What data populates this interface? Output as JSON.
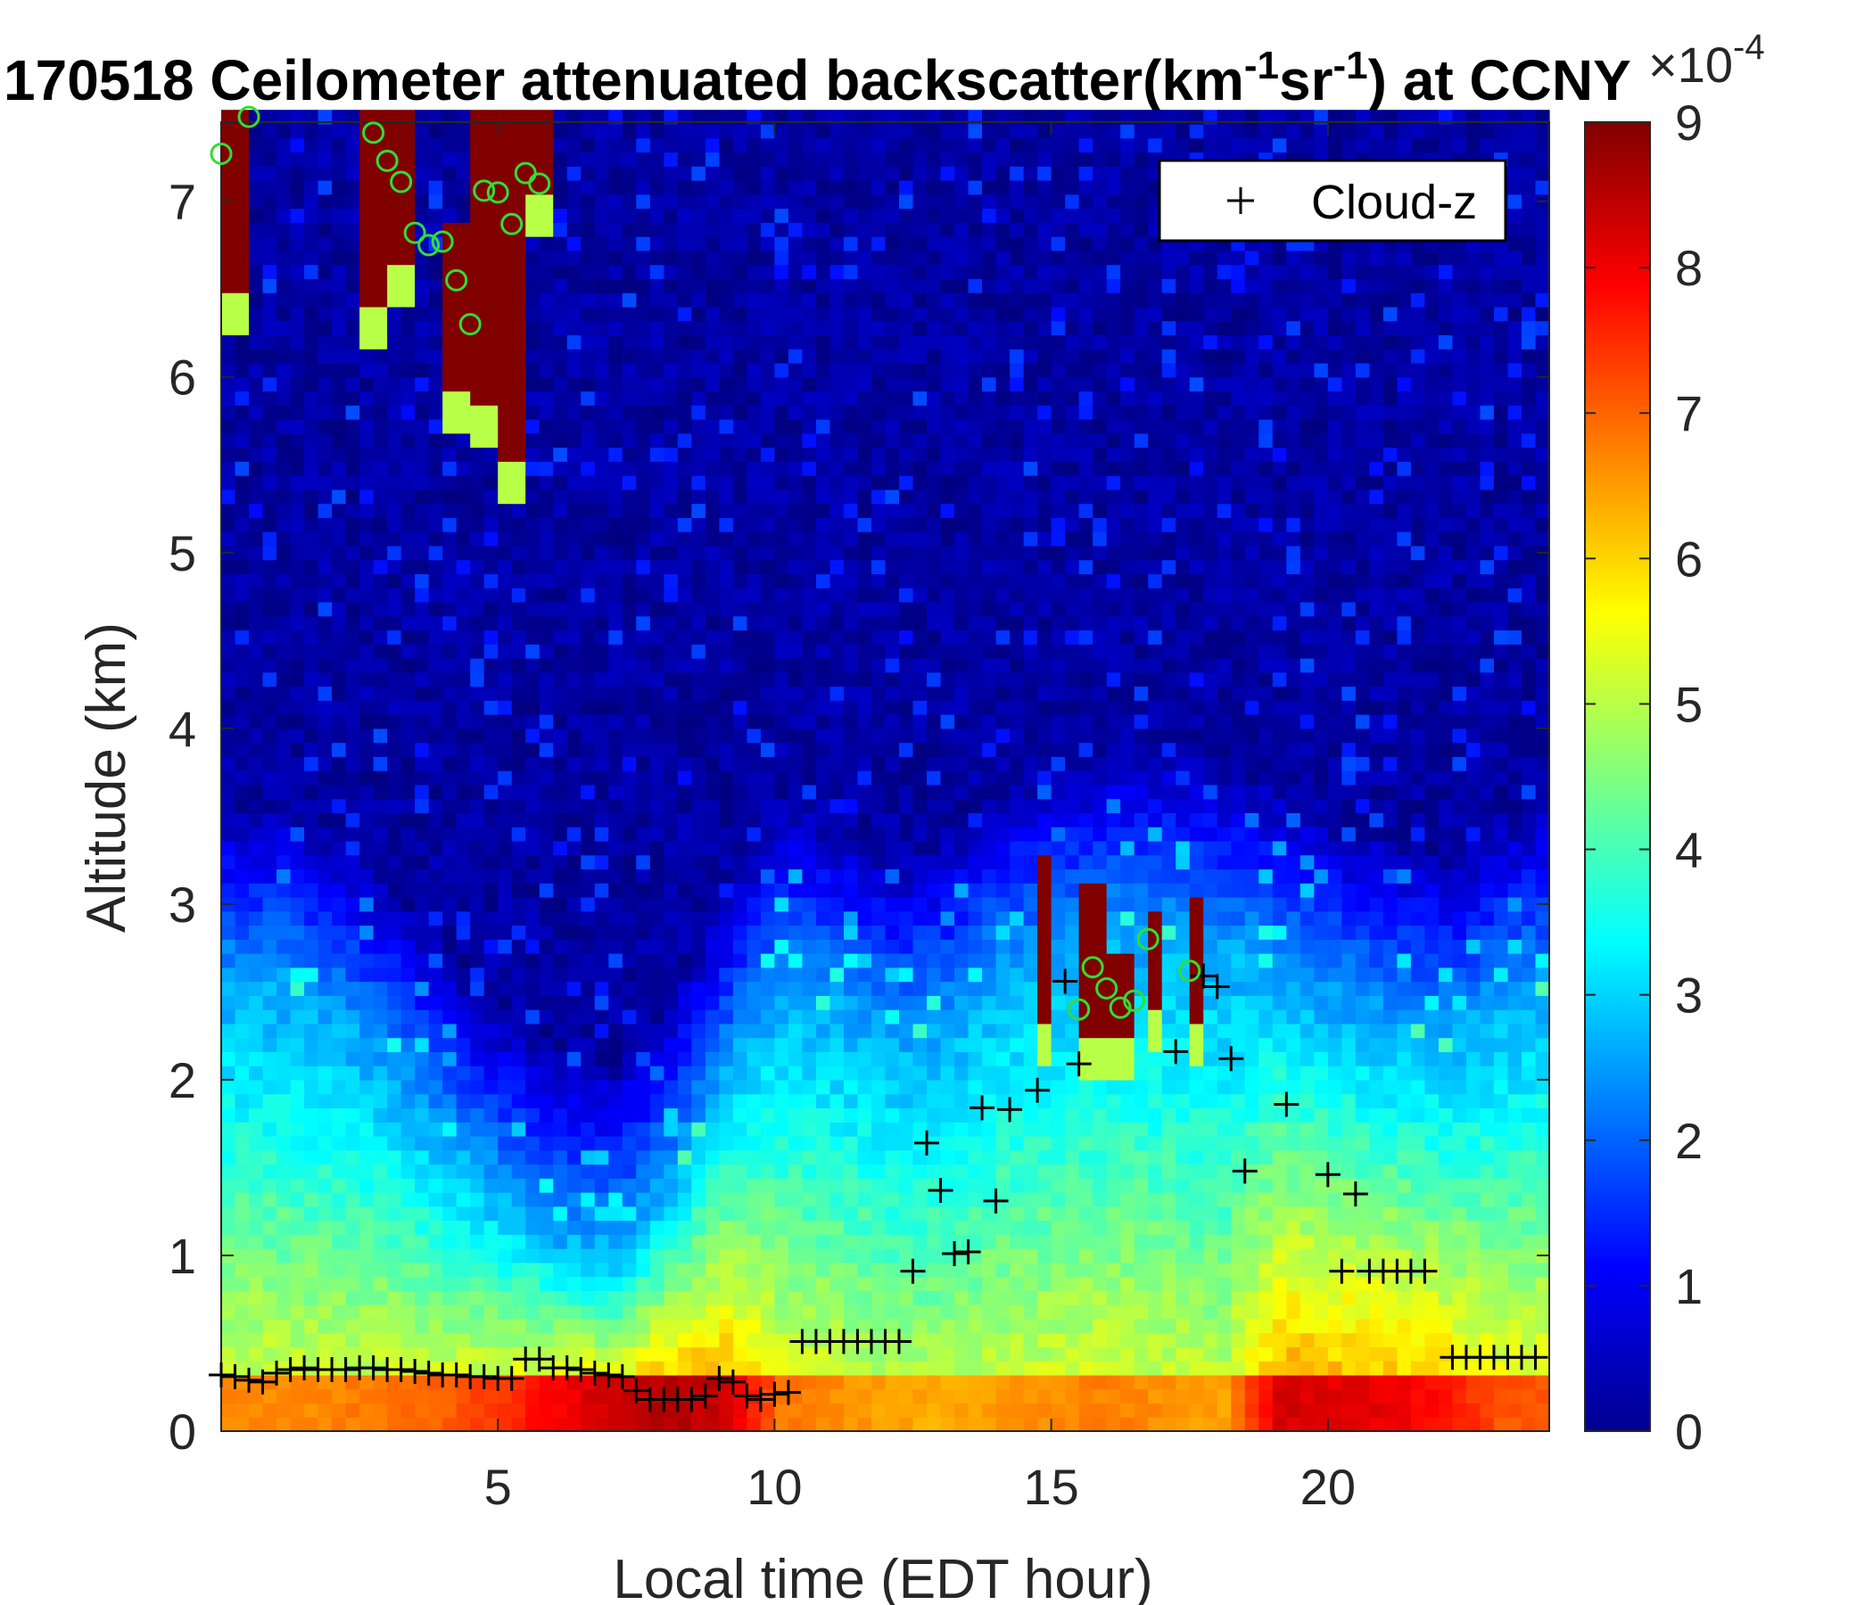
{
  "chart_data": {
    "type": "heatmap",
    "title": {
      "prefix": "170518 Ceilometer attenuated backscatter(km",
      "sup1": "-1",
      "mid": "sr",
      "sup2": "-1",
      "suffix": ") at CCNY"
    },
    "xlabel": "Local time (EDT hour)",
    "ylabel": "Altitude (km)",
    "xlim": [
      0,
      24
    ],
    "ylim": [
      0,
      7.45
    ],
    "xticks": [
      5,
      10,
      15,
      20
    ],
    "yticks": [
      0,
      1,
      2,
      3,
      4,
      5,
      6,
      7
    ],
    "colorbar": {
      "colormap": "jet",
      "clim": [
        0,
        9
      ],
      "ticks": [
        0,
        1,
        2,
        3,
        4,
        5,
        6,
        7,
        8,
        9
      ],
      "exponent_label": {
        "base": "×10",
        "exp": "-4"
      }
    },
    "legend": {
      "entries": [
        "Cloud-z"
      ],
      "marker": "+",
      "location": "top-right"
    },
    "series": [
      {
        "name": "Cloud-z",
        "marker": "+",
        "color": "#000000",
        "points": [
          [
            0,
            0.32
          ],
          [
            0.25,
            0.31
          ],
          [
            0.5,
            0.29
          ],
          [
            0.75,
            0.28
          ],
          [
            1,
            0.33
          ],
          [
            1.25,
            0.35
          ],
          [
            1.5,
            0.36
          ],
          [
            1.75,
            0.35
          ],
          [
            2,
            0.35
          ],
          [
            2.25,
            0.35
          ],
          [
            2.5,
            0.36
          ],
          [
            2.75,
            0.36
          ],
          [
            3,
            0.35
          ],
          [
            3.25,
            0.35
          ],
          [
            3.5,
            0.34
          ],
          [
            3.75,
            0.33
          ],
          [
            4,
            0.32
          ],
          [
            4.25,
            0.32
          ],
          [
            4.5,
            0.31
          ],
          [
            4.75,
            0.31
          ],
          [
            5,
            0.3
          ],
          [
            5.25,
            0.3
          ],
          [
            5.5,
            0.41
          ],
          [
            5.75,
            0.41
          ],
          [
            6,
            0.36
          ],
          [
            6.25,
            0.36
          ],
          [
            6.5,
            0.35
          ],
          [
            6.75,
            0.33
          ],
          [
            7,
            0.32
          ],
          [
            7.25,
            0.31
          ],
          [
            7.5,
            0.23
          ],
          [
            7.75,
            0.18
          ],
          [
            8,
            0.18
          ],
          [
            8.25,
            0.18
          ],
          [
            8.5,
            0.18
          ],
          [
            8.75,
            0.2
          ],
          [
            9,
            0.3
          ],
          [
            9.25,
            0.28
          ],
          [
            9.5,
            0.2
          ],
          [
            9.75,
            0.18
          ],
          [
            10,
            0.21
          ],
          [
            10.25,
            0.22
          ],
          [
            10.5,
            0.51
          ],
          [
            10.75,
            0.51
          ],
          [
            11,
            0.51
          ],
          [
            11.25,
            0.51
          ],
          [
            11.5,
            0.51
          ],
          [
            11.75,
            0.51
          ],
          [
            12,
            0.51
          ],
          [
            12.25,
            0.51
          ],
          [
            12.5,
            0.91
          ],
          [
            12.75,
            1.64
          ],
          [
            13,
            1.37
          ],
          [
            13.25,
            1.01
          ],
          [
            13.5,
            1.02
          ],
          [
            13.75,
            1.84
          ],
          [
            14,
            1.31
          ],
          [
            14.25,
            1.83
          ],
          [
            14.75,
            1.94
          ],
          [
            15.25,
            2.56
          ],
          [
            15.5,
            2.09
          ],
          [
            17.25,
            2.16
          ],
          [
            17.75,
            2.59
          ],
          [
            18.0,
            2.53
          ],
          [
            18.25,
            2.12
          ],
          [
            18.5,
            1.48
          ],
          [
            19.25,
            1.86
          ],
          [
            20,
            1.46
          ],
          [
            20.5,
            1.35
          ],
          [
            20.25,
            0.91
          ],
          [
            20.75,
            0.91
          ],
          [
            21,
            0.91
          ],
          [
            21.25,
            0.91
          ],
          [
            21.5,
            0.91
          ],
          [
            21.75,
            0.91
          ],
          [
            22.25,
            0.42
          ],
          [
            22.5,
            0.42
          ],
          [
            22.75,
            0.42
          ],
          [
            23,
            0.42
          ],
          [
            23.25,
            0.42
          ],
          [
            23.5,
            0.42
          ],
          [
            23.75,
            0.42
          ]
        ]
      },
      {
        "name": "",
        "marker": "o",
        "color": "#33dd33",
        "points": [
          [
            0.0,
            7.27
          ],
          [
            0.5,
            7.48
          ],
          [
            2.75,
            7.39
          ],
          [
            3.0,
            7.23
          ],
          [
            3.25,
            7.11
          ],
          [
            3.5,
            6.82
          ],
          [
            3.75,
            6.75
          ],
          [
            4.0,
            6.77
          ],
          [
            4.25,
            6.55
          ],
          [
            4.5,
            6.3
          ],
          [
            4.75,
            7.06
          ],
          [
            5.0,
            7.05
          ],
          [
            5.25,
            6.87
          ],
          [
            5.5,
            7.16
          ],
          [
            5.75,
            7.1
          ],
          [
            15.5,
            2.4
          ],
          [
            15.75,
            2.64
          ],
          [
            16.0,
            2.52
          ],
          [
            16.25,
            2.41
          ],
          [
            16.5,
            2.45
          ],
          [
            16.75,
            2.8
          ],
          [
            17.5,
            2.62
          ]
        ]
      }
    ]
  }
}
